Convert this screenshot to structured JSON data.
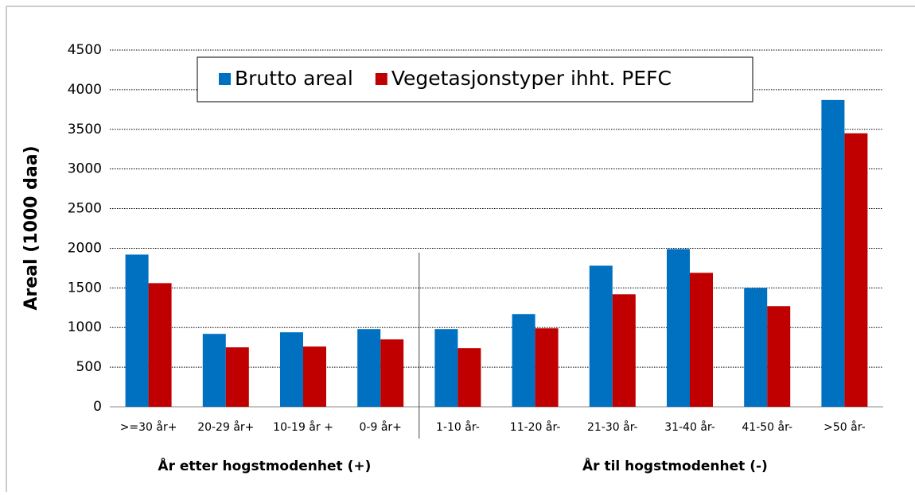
{
  "chart_data": {
    "type": "bar",
    "ylabel": "Areal (1000 daa)",
    "categories": [
      ">=30 år+",
      "20-29 år+",
      "10-19 år +",
      "0-9 år+",
      "1-10 år-",
      "11-20 år-",
      "21-30 år-",
      "31-40 år-",
      "41-50 år-",
      ">50 år-"
    ],
    "group_labels": [
      "År etter hogstmodenhet (+)",
      "År til hogstmodenhet (-)"
    ],
    "series": [
      {
        "name": "Brutto areal",
        "color": "#0070c0",
        "values": [
          1920,
          920,
          940,
          980,
          980,
          1170,
          1780,
          1990,
          1500,
          3870
        ]
      },
      {
        "name": "Vegetasjonstyper ihht. PEFC",
        "color": "#c00000",
        "values": [
          1560,
          750,
          760,
          850,
          740,
          990,
          1420,
          1690,
          1270,
          3450
        ]
      }
    ],
    "ylim": [
      0,
      4500
    ],
    "yticks": [
      0,
      500,
      1000,
      1500,
      2000,
      2500,
      3000,
      3500,
      4000,
      4500
    ],
    "grid": true,
    "legend": "top"
  }
}
